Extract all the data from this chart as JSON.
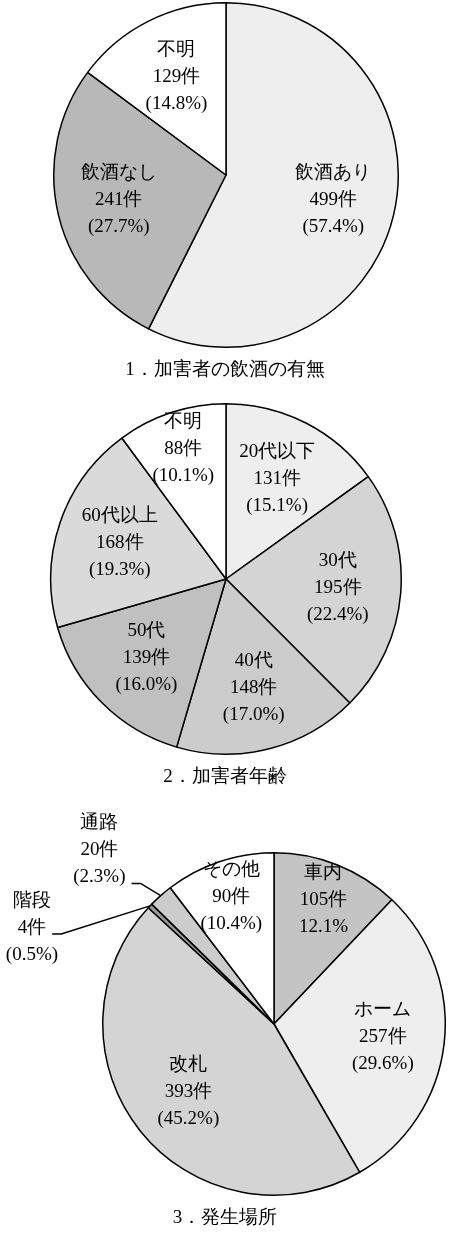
{
  "chart_data": [
    {
      "type": "pie",
      "title": "1．加害者の飲酒の有無",
      "categories": [
        "飲酒あり",
        "飲酒なし",
        "不明"
      ],
      "values": [
        499,
        241,
        129
      ],
      "value_labels": [
        "499件\n(57.4%)",
        "241件\n(27.7%)",
        "129件\n(14.8%)"
      ],
      "colors": [
        "#eeeeee",
        "#b8b8b8",
        "#ffffff"
      ]
    },
    {
      "type": "pie",
      "title": "2．加害者年齢",
      "categories": [
        "20代以下",
        "30代",
        "40代",
        "50代",
        "60代以上",
        "不明"
      ],
      "values": [
        131,
        195,
        148,
        139,
        168,
        88
      ],
      "value_labels": [
        "131件\n(15.1%)",
        "195件\n(22.4%)",
        "148件\n(17.0%)",
        "139件\n(16.0%)",
        "168件\n(19.3%)",
        "88件\n(10.1%)"
      ],
      "colors": [
        "#eeeeee",
        "#d4d4d4",
        "#cccccc",
        "#c0c0c0",
        "#dadada",
        "#ffffff"
      ]
    },
    {
      "type": "pie",
      "title": "3．発生場所",
      "categories": [
        "車内",
        "ホーム",
        "改札",
        "階段",
        "通路",
        "その他"
      ],
      "values": [
        105,
        257,
        393,
        4,
        20,
        90
      ],
      "value_labels": [
        "105件\n12.1%",
        "257件\n(29.6%)",
        "393件\n(45.2%)",
        "4件\n(0.5%)",
        "20件\n(2.3%)",
        "90件\n(10.4%)"
      ],
      "colors": [
        "#c4c4c4",
        "#eeeeee",
        "#d4d4d4",
        "#999999",
        "#cccccc",
        "#ffffff"
      ]
    }
  ]
}
